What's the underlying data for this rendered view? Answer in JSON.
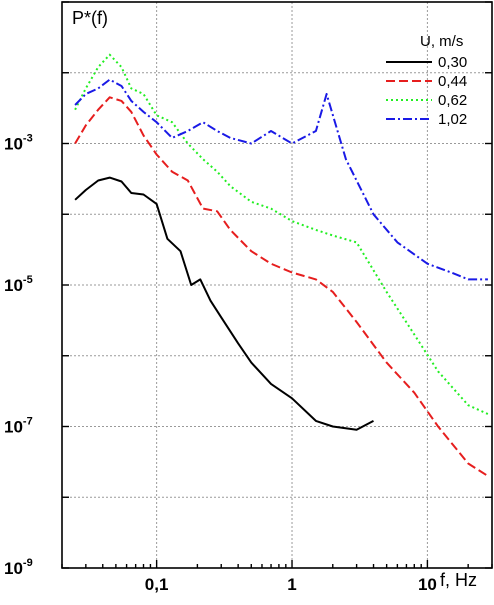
{
  "chart_data": {
    "type": "line",
    "title": "",
    "ylabel": "P*(f)",
    "xlabel": "f, Hz",
    "x_scale": "log",
    "y_scale": "log",
    "xlim": [
      0.02,
      30
    ],
    "ylim": [
      1e-09,
      0.1
    ],
    "grid": true,
    "legend_position": "top-right",
    "legend_title": "U, m/s",
    "x_ticks": [
      {
        "value": 0.1,
        "label": "0,1"
      },
      {
        "value": 1,
        "label": "1"
      },
      {
        "value": 10,
        "label": "10"
      }
    ],
    "y_ticks": [
      {
        "value": 1e-09,
        "base": "10",
        "exp": "-9"
      },
      {
        "value": 1e-07,
        "base": "10",
        "exp": "-7"
      },
      {
        "value": 1e-05,
        "base": "10",
        "exp": "-5"
      },
      {
        "value": 0.001,
        "base": "10",
        "exp": "-3"
      }
    ],
    "series": [
      {
        "name": "0,30",
        "color": "#000000",
        "dash": "solid",
        "points": [
          [
            0.025,
            0.00016
          ],
          [
            0.03,
            0.00022
          ],
          [
            0.037,
            0.0003
          ],
          [
            0.045,
            0.00033
          ],
          [
            0.055,
            0.00029
          ],
          [
            0.065,
            0.0002
          ],
          [
            0.08,
            0.00019
          ],
          [
            0.1,
            0.00014
          ],
          [
            0.12,
            4.5e-05
          ],
          [
            0.15,
            3e-05
          ],
          [
            0.18,
            1e-05
          ],
          [
            0.21,
            1.2e-05
          ],
          [
            0.25,
            6e-06
          ],
          [
            0.3,
            3.5e-06
          ],
          [
            0.4,
            1.5e-06
          ],
          [
            0.5,
            8e-07
          ],
          [
            0.7,
            4e-07
          ],
          [
            1.0,
            2.5e-07
          ],
          [
            1.5,
            1.2e-07
          ],
          [
            2.0,
            1e-07
          ],
          [
            3.0,
            9e-08
          ],
          [
            4.0,
            1.2e-07
          ]
        ]
      },
      {
        "name": "0,44",
        "color": "#e61e1e",
        "dash": "dashed",
        "points": [
          [
            0.025,
            0.001
          ],
          [
            0.03,
            0.0018
          ],
          [
            0.037,
            0.003
          ],
          [
            0.045,
            0.0045
          ],
          [
            0.055,
            0.004
          ],
          [
            0.065,
            0.0028
          ],
          [
            0.08,
            0.0013
          ],
          [
            0.1,
            0.0007
          ],
          [
            0.13,
            0.0004
          ],
          [
            0.17,
            0.0003
          ],
          [
            0.22,
            0.00012
          ],
          [
            0.28,
            0.00011
          ],
          [
            0.35,
            6e-05
          ],
          [
            0.5,
            3e-05
          ],
          [
            0.7,
            2e-05
          ],
          [
            1.0,
            1.5e-05
          ],
          [
            1.5,
            1.2e-05
          ],
          [
            2.0,
            8e-06
          ],
          [
            3.0,
            3e-06
          ],
          [
            5.0,
            8e-07
          ],
          [
            8.0,
            3e-07
          ],
          [
            12.0,
            1e-07
          ],
          [
            20.0,
            3e-08
          ],
          [
            28.0,
            2e-08
          ]
        ]
      },
      {
        "name": "0,62",
        "color": "#22ee22",
        "dash": "dotted",
        "points": [
          [
            0.025,
            0.003
          ],
          [
            0.03,
            0.006
          ],
          [
            0.037,
            0.012
          ],
          [
            0.045,
            0.018
          ],
          [
            0.055,
            0.012
          ],
          [
            0.065,
            0.006
          ],
          [
            0.08,
            0.005
          ],
          [
            0.1,
            0.0025
          ],
          [
            0.13,
            0.002
          ],
          [
            0.17,
            0.001
          ],
          [
            0.22,
            0.0006
          ],
          [
            0.28,
            0.0004
          ],
          [
            0.35,
            0.00025
          ],
          [
            0.5,
            0.00015
          ],
          [
            0.7,
            0.00012
          ],
          [
            1.0,
            8e-05
          ],
          [
            1.5,
            6e-05
          ],
          [
            2.0,
            5e-05
          ],
          [
            3.0,
            4e-05
          ],
          [
            5.0,
            8e-06
          ],
          [
            8.0,
            2e-06
          ],
          [
            12.0,
            6e-07
          ],
          [
            20.0,
            2e-07
          ],
          [
            28.0,
            1.5e-07
          ]
        ]
      },
      {
        "name": "1,02",
        "color": "#1a1ae6",
        "dash": "dashdot",
        "points": [
          [
            0.025,
            0.0035
          ],
          [
            0.03,
            0.005
          ],
          [
            0.037,
            0.006
          ],
          [
            0.045,
            0.008
          ],
          [
            0.055,
            0.0065
          ],
          [
            0.065,
            0.004
          ],
          [
            0.08,
            0.0028
          ],
          [
            0.1,
            0.002
          ],
          [
            0.13,
            0.0012
          ],
          [
            0.17,
            0.0015
          ],
          [
            0.22,
            0.002
          ],
          [
            0.28,
            0.0015
          ],
          [
            0.35,
            0.0012
          ],
          [
            0.5,
            0.001
          ],
          [
            0.7,
            0.0015
          ],
          [
            1.0,
            0.001
          ],
          [
            1.5,
            0.0015
          ],
          [
            1.8,
            0.005
          ],
          [
            2.5,
            0.0006
          ],
          [
            4.0,
            0.0001
          ],
          [
            6.0,
            4e-05
          ],
          [
            10.0,
            2e-05
          ],
          [
            15.0,
            1.5e-05
          ],
          [
            20.0,
            1.2e-05
          ],
          [
            28.0,
            1.2e-05
          ]
        ]
      }
    ]
  }
}
